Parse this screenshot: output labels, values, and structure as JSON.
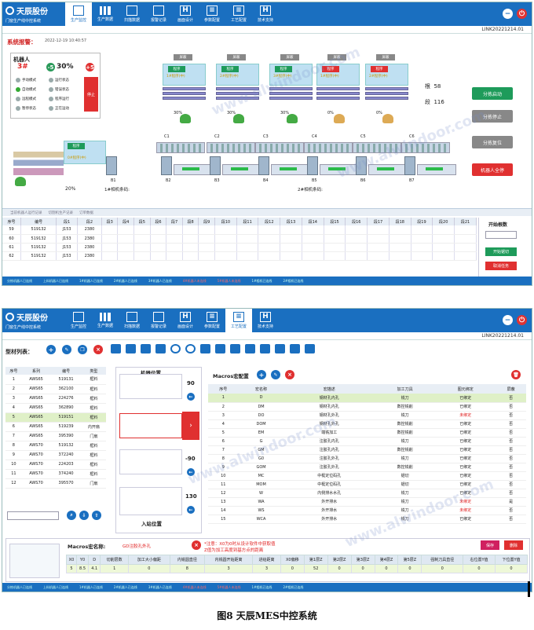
{
  "brand": {
    "name": "天辰股份",
    "en": "TC·ALUM",
    "sub": "门窗生产线中控系统"
  },
  "nav1": [
    {
      "label": "生产监控",
      "icon": "monitor"
    },
    {
      "label": "生产数据",
      "icon": "bar"
    },
    {
      "label": "扫描数据",
      "icon": "scan"
    },
    {
      "label": "报警记录",
      "icon": "alarm"
    },
    {
      "label": "画面设计",
      "icon": "H"
    },
    {
      "label": "参数配置",
      "icon": "list"
    },
    {
      "label": "工艺配置",
      "icon": "list"
    },
    {
      "label": "技术支持",
      "icon": "H"
    }
  ],
  "nav_active1": 0,
  "nav_active2": 6,
  "window_id": "LINK20221214.01",
  "screen1": {
    "alarm_label": "系统报警：",
    "datetime": "2022-12-19  10:40:57",
    "robot": {
      "title": "机器人",
      "num": "3#",
      "minus": "-5",
      "speed": "30%",
      "plus": "+5",
      "leds": [
        [
          "手动模式",
          "运行状态"
        ],
        [
          "自动模式",
          "错误状态"
        ],
        [
          "远程模式",
          "程序运行"
        ],
        [
          "暂停状态",
          "正在运动"
        ]
      ],
      "stop": "停止"
    },
    "stations": [
      {
        "btn": "屏蔽",
        "proc": "程序",
        "text": "1#程序(中)",
        "pct": "30%",
        "red": false,
        "robot": "green"
      },
      {
        "btn": "屏蔽",
        "proc": "程序",
        "text": "2#程序(中)",
        "pct": "30%",
        "red": false,
        "robot": "green"
      },
      {
        "btn": "屏蔽",
        "proc": "程序",
        "text": "3#程序(中)",
        "pct": "30%",
        "red": false,
        "robot": "green"
      },
      {
        "btn": "屏蔽",
        "proc": "程序",
        "text": "1#程序(中)",
        "pct": "0%",
        "red": true,
        "robot": "yellow"
      },
      {
        "btn": "屏蔽",
        "proc": "程序",
        "text": "2#程序(中)",
        "pct": "0%",
        "red": true,
        "robot": "yellow"
      }
    ],
    "counters": {
      "gen_label": "根",
      "gen": "58",
      "duan_label": "段",
      "duan": "116"
    },
    "feed": {
      "proc": "程序",
      "text": "0#程序(中)",
      "pct": "20%"
    },
    "c_labels": [
      "C1",
      "C2",
      "C3",
      "C4",
      "C5",
      "C6"
    ],
    "b_labels": [
      "B1",
      "B2",
      "B3",
      "B4",
      "B5",
      "B6",
      "B7"
    ],
    "scan1": "1#相机条码:",
    "scan2": "2#相机条码:",
    "right_buttons": [
      "分拣启动",
      "分拣停止",
      "分拣复位",
      "机器人全停"
    ],
    "tabs": [
      "当前机器人运行记录",
      "切割机生产记录",
      "订单数据"
    ],
    "grid_headers": [
      "序号",
      "编号",
      "段1",
      "段2",
      "段3",
      "段4",
      "段5",
      "段6",
      "段7",
      "段8",
      "段9",
      "段10",
      "段11",
      "段12",
      "段13",
      "段14",
      "段15",
      "段16",
      "段17",
      "段18",
      "段19",
      "段20",
      "段21"
    ],
    "grid_rows": [
      [
        "59",
        "519132",
        "J153",
        "2380"
      ],
      [
        "60",
        "519132",
        "J153",
        "2380"
      ],
      [
        "61",
        "519132",
        "J153",
        "2380"
      ],
      [
        "62",
        "519132",
        "J153",
        "2380"
      ]
    ],
    "start_count_label": "开始根数",
    "btn_start_cut": "开始锯切",
    "btn_cancel": "取消任务",
    "status": [
      "分拣机器人已连线",
      "上料机器人已连线",
      "1#机器人已连线",
      "2#机器人已连线",
      "3#机器人已连线",
      "4#机器人未连线",
      "5#机器人未连线",
      "1#相机已连线",
      "2#相机已连线"
    ]
  },
  "screen2": {
    "profile_title": "型材列表：",
    "profile_headers": [
      "序号",
      "系列",
      "编号",
      "类型"
    ],
    "profiles": [
      [
        "1",
        "AWS65",
        "519131",
        "框料"
      ],
      [
        "2",
        "AWS65",
        "362100",
        "框料"
      ],
      [
        "3",
        "AWS65",
        "224276",
        "框料"
      ],
      [
        "4",
        "AWS65",
        "362890",
        "框料"
      ],
      [
        "5",
        "AWS65",
        "519151",
        "框料"
      ],
      [
        "6",
        "AWS65",
        "519239",
        "内开扇"
      ],
      [
        "7",
        "AWS65",
        "395390",
        "门扇"
      ],
      [
        "8",
        "AWS70",
        "519132",
        "框料"
      ],
      [
        "9",
        "AWS70",
        "372240",
        "框料"
      ],
      [
        "10",
        "AWS70",
        "224203",
        "框料"
      ],
      [
        "11",
        "AWS70",
        "374240",
        "框料"
      ],
      [
        "12",
        "AWS70",
        "395570",
        "门扇"
      ]
    ],
    "profile_highlight": 4,
    "machine_title": "机器位置",
    "entry_title": "入站位置",
    "angles": [
      "90",
      "0",
      "-90",
      "130"
    ],
    "macro_title": "Macros宏配置",
    "macro_headers": [
      "序号",
      "宏名称",
      "宏描述",
      "加工刀具",
      "图元绑定",
      "屏蔽"
    ],
    "macros": [
      [
        "1",
        "D",
        "钢材孔内孔",
        "铣刀",
        "已绑定",
        "否"
      ],
      [
        "2",
        "DM",
        "钢材孔内孔",
        "数控铣削",
        "已绑定",
        "否"
      ],
      [
        "3",
        "DO",
        "钢材孔外孔",
        "铣刀",
        "未绑定",
        "否"
      ],
      [
        "4",
        "DOM",
        "钢材孔外孔",
        "数控铣削",
        "已绑定",
        "否"
      ],
      [
        "5",
        "EM",
        "端铣加工",
        "数控铣削",
        "已绑定",
        "否"
      ],
      [
        "6",
        "G",
        "注胶孔内孔",
        "铣刀",
        "已绑定",
        "否"
      ],
      [
        "7",
        "GM",
        "注胶孔内孔",
        "数控铣削",
        "已绑定",
        "否"
      ],
      [
        "8",
        "G0",
        "注胶孔外孔",
        "铣刀",
        "已绑定",
        "否"
      ],
      [
        "9",
        "GOM",
        "注胶孔外孔",
        "数控铣削",
        "已绑定",
        "否"
      ],
      [
        "10",
        "MC",
        "中梃定位码孔",
        "锯切",
        "已绑定",
        "否"
      ],
      [
        "11",
        "MOM",
        "中梃定位码孔",
        "锯切",
        "已绑定",
        "否"
      ],
      [
        "12",
        "W",
        "内侧排水水孔",
        "铣刀",
        "已绑定",
        "否"
      ],
      [
        "13",
        "WA",
        "外开排水",
        "铣刀",
        "未绑定",
        "是"
      ],
      [
        "14",
        "WS",
        "外开排水",
        "铣刀",
        "未绑定",
        "否"
      ],
      [
        "15",
        "WCA",
        "外开排水",
        "铣刀",
        "已绑定",
        "否"
      ]
    ],
    "macro_highlight": 0,
    "macro_name_label": "Macros宏名称:",
    "macro_name_value": "GD注胶孔外孔",
    "note1": "*注意：X0为0时从设计软件中获取值",
    "note2": "Z值为加工高度到基方点的距离",
    "save": "保存",
    "delete": "删除",
    "param_headers": [
      "X0",
      "Y0",
      "D",
      "切削层数",
      "加工大小偏距",
      "内铣圆直径",
      "内铣圆开始距离",
      "进给距离",
      "X0偏移",
      "第1层Z",
      "第2层Z",
      "第3层Z",
      "第4层Z",
      "第5层Z",
      "强制刀具直径",
      "右位置Y值",
      "下位置Y值"
    ],
    "param_values": [
      "5",
      "8.5",
      "4.1",
      "1",
      "0",
      "8",
      "3",
      "3",
      "0",
      "52",
      "0",
      "0",
      "0",
      "0",
      "0",
      "0",
      "0"
    ],
    "status": [
      "分拣机器人已连线",
      "上料机器人已连线",
      "1#机器人已连线",
      "2#机器人已连线",
      "3#机器人已连线",
      "4#机器人未连线",
      "5#机器人未连线",
      "1#相机已连线",
      "2#相机已连线"
    ]
  },
  "caption": "图8  天辰MES中控系统",
  "watermark": "www.alwindoor.com"
}
